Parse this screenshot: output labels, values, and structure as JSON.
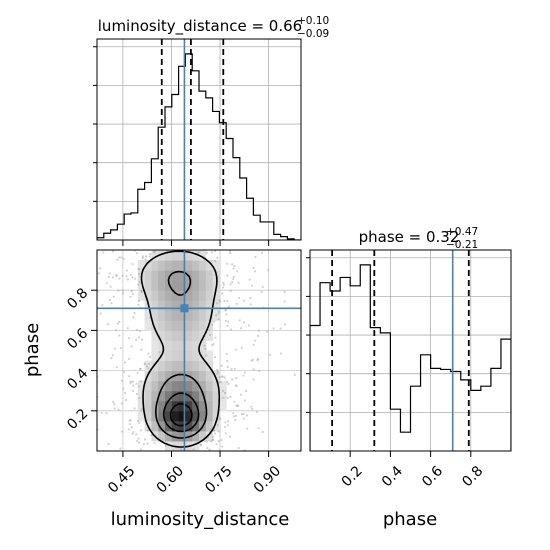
{
  "chart_data": {
    "type": "corner",
    "parameters": [
      "luminosity_distance",
      "phase"
    ],
    "truths": {
      "luminosity_distance": 0.64,
      "phase": 0.71
    },
    "grid": true,
    "panels": [
      {
        "id": "hist_luminosity_distance",
        "type": "histogram",
        "title": {
          "main": "luminosity_distance = 0.66",
          "sup": "+0.10",
          "sub": "−0.09"
        },
        "xlim": [
          0.37,
          1.0
        ],
        "quantiles": [
          0.57,
          0.66,
          0.76
        ],
        "truth": 0.64,
        "bins": [
          {
            "x0": 0.37,
            "x1": 0.391,
            "count": 2
          },
          {
            "x0": 0.391,
            "x1": 0.412,
            "count": 6
          },
          {
            "x0": 0.412,
            "x1": 0.433,
            "count": 9
          },
          {
            "x0": 0.433,
            "x1": 0.454,
            "count": 14
          },
          {
            "x0": 0.454,
            "x1": 0.475,
            "count": 23
          },
          {
            "x0": 0.475,
            "x1": 0.496,
            "count": 24
          },
          {
            "x0": 0.496,
            "x1": 0.517,
            "count": 45
          },
          {
            "x0": 0.517,
            "x1": 0.538,
            "count": 51
          },
          {
            "x0": 0.538,
            "x1": 0.559,
            "count": 72
          },
          {
            "x0": 0.559,
            "x1": 0.58,
            "count": 100
          },
          {
            "x0": 0.58,
            "x1": 0.601,
            "count": 118
          },
          {
            "x0": 0.601,
            "x1": 0.622,
            "count": 129
          },
          {
            "x0": 0.622,
            "x1": 0.643,
            "count": 154
          },
          {
            "x0": 0.643,
            "x1": 0.664,
            "count": 165
          },
          {
            "x0": 0.664,
            "x1": 0.685,
            "count": 150
          },
          {
            "x0": 0.685,
            "x1": 0.706,
            "count": 132
          },
          {
            "x0": 0.706,
            "x1": 0.727,
            "count": 126
          },
          {
            "x0": 0.727,
            "x1": 0.748,
            "count": 114
          },
          {
            "x0": 0.748,
            "x1": 0.769,
            "count": 104
          },
          {
            "x0": 0.769,
            "x1": 0.79,
            "count": 90
          },
          {
            "x0": 0.79,
            "x1": 0.811,
            "count": 73
          },
          {
            "x0": 0.811,
            "x1": 0.832,
            "count": 55
          },
          {
            "x0": 0.832,
            "x1": 0.853,
            "count": 37
          },
          {
            "x0": 0.853,
            "x1": 0.874,
            "count": 22
          },
          {
            "x0": 0.874,
            "x1": 0.895,
            "count": 16
          },
          {
            "x0": 0.895,
            "x1": 0.916,
            "count": 16
          },
          {
            "x0": 0.916,
            "x1": 0.937,
            "count": 5
          },
          {
            "x0": 0.937,
            "x1": 0.958,
            "count": 3
          },
          {
            "x0": 0.958,
            "x1": 0.979,
            "count": 1
          },
          {
            "x0": 0.979,
            "x1": 1.0,
            "count": 0
          }
        ]
      },
      {
        "id": "hist_phase",
        "type": "histogram",
        "title": {
          "main": "phase = 0.32",
          "sup": "+0.47",
          "sub": "−0.21"
        },
        "xlim": [
          0.0,
          1.0
        ],
        "xticks": [
          "0.2",
          "0.4",
          "0.6",
          "0.8"
        ],
        "xlabel": "phase",
        "quantiles": [
          0.11,
          0.32,
          0.79
        ],
        "truth": 0.71,
        "bins": [
          {
            "x0": 0.0,
            "x1": 0.05,
            "count": 120
          },
          {
            "x0": 0.05,
            "x1": 0.1,
            "count": 161
          },
          {
            "x0": 0.1,
            "x1": 0.15,
            "count": 153
          },
          {
            "x0": 0.15,
            "x1": 0.2,
            "count": 166
          },
          {
            "x0": 0.2,
            "x1": 0.25,
            "count": 158
          },
          {
            "x0": 0.25,
            "x1": 0.3,
            "count": 178
          },
          {
            "x0": 0.3,
            "x1": 0.35,
            "count": 118
          },
          {
            "x0": 0.35,
            "x1": 0.4,
            "count": 113
          },
          {
            "x0": 0.4,
            "x1": 0.45,
            "count": 40
          },
          {
            "x0": 0.45,
            "x1": 0.5,
            "count": 18
          },
          {
            "x0": 0.5,
            "x1": 0.55,
            "count": 62
          },
          {
            "x0": 0.55,
            "x1": 0.6,
            "count": 92
          },
          {
            "x0": 0.6,
            "x1": 0.65,
            "count": 79
          },
          {
            "x0": 0.65,
            "x1": 0.7,
            "count": 78
          },
          {
            "x0": 0.7,
            "x1": 0.75,
            "count": 76
          },
          {
            "x0": 0.75,
            "x1": 0.8,
            "count": 68
          },
          {
            "x0": 0.8,
            "x1": 0.85,
            "count": 58
          },
          {
            "x0": 0.85,
            "x1": 0.9,
            "count": 62
          },
          {
            "x0": 0.9,
            "x1": 0.95,
            "count": 79
          },
          {
            "x0": 0.95,
            "x1": 1.0,
            "count": 107
          }
        ]
      },
      {
        "id": "joint_luminosity_distance_phase",
        "type": "heatmap",
        "xlim": [
          0.37,
          1.0
        ],
        "ylim": [
          0.0,
          1.0
        ],
        "xticks": [
          "0.45",
          "0.60",
          "0.75",
          "0.90"
        ],
        "yticks": [
          "0.2",
          "0.4",
          "0.6",
          "0.8"
        ],
        "xlabel": "luminosity_distance",
        "ylabel": "phase",
        "truth_point": [
          0.64,
          0.71
        ],
        "density_peaks": [
          {
            "x": 0.63,
            "y": 0.16,
            "weight": 1.0,
            "sx": 0.05,
            "sy": 0.07
          },
          {
            "x": 0.63,
            "y": 0.3,
            "weight": 0.55,
            "sx": 0.07,
            "sy": 0.1
          },
          {
            "x": 0.63,
            "y": 0.7,
            "weight": 0.35,
            "sx": 0.07,
            "sy": 0.14
          },
          {
            "x": 0.62,
            "y": 0.88,
            "weight": 0.3,
            "sx": 0.08,
            "sy": 0.08
          }
        ],
        "contour_levels": [
          0.12,
          0.35,
          0.6,
          0.82
        ]
      }
    ]
  }
}
